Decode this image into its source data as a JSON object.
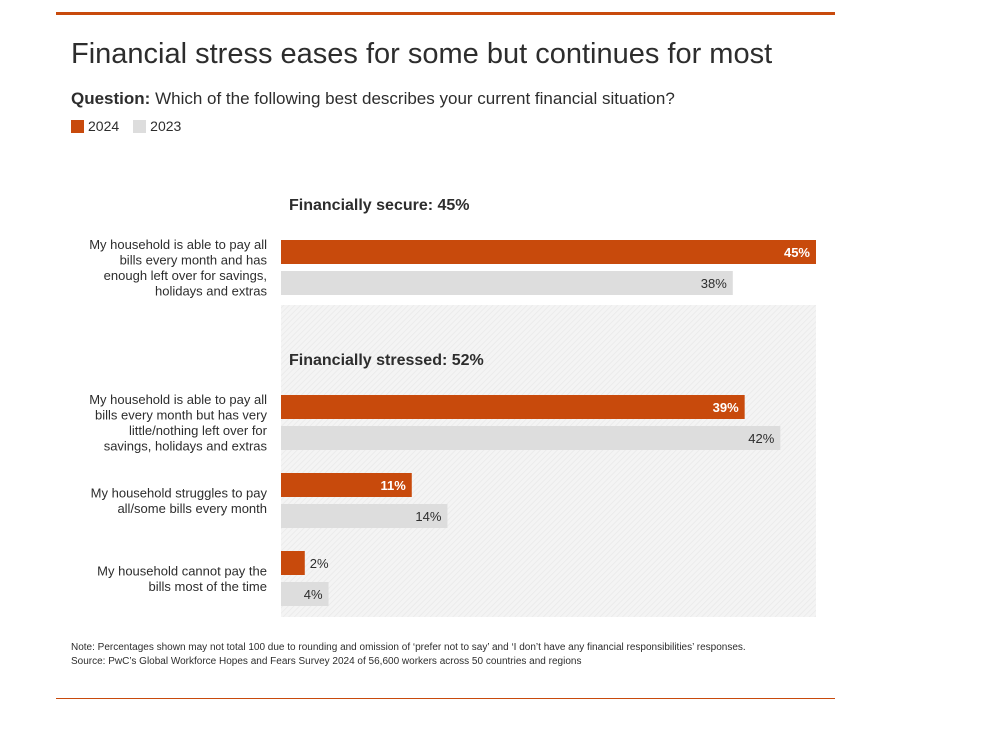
{
  "header": {
    "title": "Financial stress eases for some but continues for most",
    "question_label": "Question:",
    "question_text": " Which of the following best describes your current financial situation?"
  },
  "legend": [
    {
      "label": "2024",
      "color": "#c84a0c"
    },
    {
      "label": "2023",
      "color": "#dddddd"
    }
  ],
  "chart_data": {
    "type": "bar",
    "orientation": "horizontal",
    "series": [
      {
        "name": "2024",
        "color": "#c84a0c"
      },
      {
        "name": "2023",
        "color": "#dddddd"
      }
    ],
    "groups": [
      {
        "heading": "Financially secure: 45%",
        "shaded": false,
        "categories": [
          {
            "label_lines": [
              "My household is able to pay all",
              "bills every month and has",
              "enough left over for savings,",
              "holidays and extras"
            ],
            "values": [
              45,
              38
            ],
            "value_labels": [
              "45%",
              "38%"
            ]
          }
        ]
      },
      {
        "heading": "Financially stressed: 52%",
        "shaded": true,
        "categories": [
          {
            "label_lines": [
              "My household is able to pay all",
              "bills every month but has very",
              "little/nothing left over for",
              "savings, holidays and extras"
            ],
            "values": [
              39,
              42
            ],
            "value_labels": [
              "39%",
              "42%"
            ]
          },
          {
            "label_lines": [
              "My household struggles to pay",
              "all/some bills every month"
            ],
            "values": [
              11,
              14
            ],
            "value_labels": [
              "11%",
              "14%"
            ]
          },
          {
            "label_lines": [
              "My household cannot pay the",
              "bills most of the time"
            ],
            "values": [
              2,
              4
            ],
            "value_labels": [
              "2%",
              "4%"
            ]
          }
        ]
      }
    ],
    "xlim": [
      0,
      45
    ]
  },
  "notes": {
    "note": "Note: Percentages shown may not total 100 due to rounding and omission of ‘prefer not to say’ and ‘I don’t have any financial responsibilities’ responses.",
    "source": "Source: PwC’s Global Workforce Hopes and Fears Survey 2024 of 56,600 workers across 50 countries and regions"
  }
}
